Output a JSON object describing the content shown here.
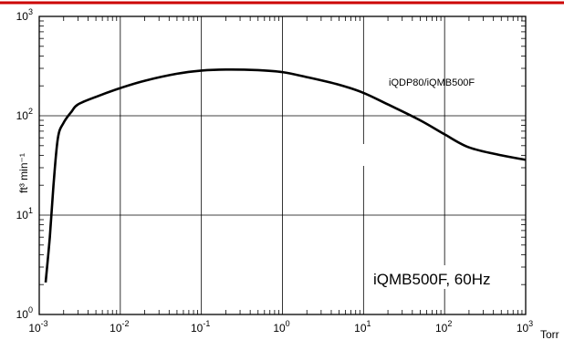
{
  "colors": {
    "accent_line": "#cc0000",
    "curve": "#000000",
    "grid": "#000000",
    "background": "#ffffff"
  },
  "chart_data": {
    "type": "line",
    "title": "",
    "xlabel": "Torr",
    "ylabel": "ft³ min⁻¹",
    "x_scale": "log",
    "y_scale": "log",
    "xlim": [
      0.001,
      1000
    ],
    "ylim": [
      1,
      1000
    ],
    "grid": true,
    "x_ticks": [
      {
        "base": "10",
        "exp": "-3",
        "value": 0.001
      },
      {
        "base": "10",
        "exp": "-2",
        "value": 0.01
      },
      {
        "base": "10",
        "exp": "-1",
        "value": 0.1
      },
      {
        "base": "10",
        "exp": "0",
        "value": 1
      },
      {
        "base": "10",
        "exp": "1",
        "value": 10
      },
      {
        "base": "10",
        "exp": "2",
        "value": 100
      },
      {
        "base": "10",
        "exp": "3",
        "value": 1000
      }
    ],
    "y_ticks": [
      {
        "base": "10",
        "exp": "0",
        "value": 1
      },
      {
        "base": "10",
        "exp": "1",
        "value": 10
      },
      {
        "base": "10",
        "exp": "2",
        "value": 100
      },
      {
        "base": "10",
        "exp": "3",
        "value": 1000
      }
    ],
    "annotations": {
      "series_label": "iQDP80/iQMB500F",
      "model_label": "iQMB500F, 60Hz"
    },
    "series": [
      {
        "name": "iQDP80/iQMB500F",
        "x": [
          0.0012,
          0.00135,
          0.0015,
          0.0017,
          0.002,
          0.0025,
          0.003,
          0.005,
          0.01,
          0.02,
          0.05,
          0.1,
          0.2,
          0.5,
          1,
          2,
          5,
          10,
          20,
          50,
          100,
          200,
          500,
          1000
        ],
        "y": [
          2.1,
          6,
          20,
          60,
          85,
          110,
          130,
          155,
          190,
          225,
          265,
          285,
          292,
          288,
          275,
          245,
          205,
          170,
          130,
          90,
          65,
          48,
          40,
          36
        ]
      }
    ]
  }
}
